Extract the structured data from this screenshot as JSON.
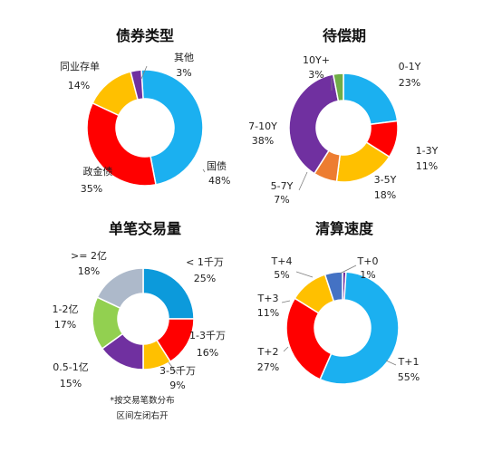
{
  "chart_data": [
    {
      "type": "pie",
      "title": "债券类型",
      "slices": [
        {
          "label": "国债",
          "value": 48,
          "pct_label": "48%",
          "color": "#1BB0F0"
        },
        {
          "label": "政金债",
          "value": 35,
          "pct_label": "35%",
          "color": "#FF0000"
        },
        {
          "label": "同业存单",
          "value": 14,
          "pct_label": "14%",
          "color": "#FFC000"
        },
        {
          "label": "其他",
          "value": 3,
          "pct_label": "3%",
          "color": "#7030A0"
        }
      ]
    },
    {
      "type": "pie",
      "title": "待偿期",
      "slices": [
        {
          "label": "0-1Y",
          "value": 23,
          "pct_label": "23%",
          "color": "#1BB0F0"
        },
        {
          "label": "1-3Y",
          "value": 11,
          "pct_label": "11%",
          "color": "#FF0000"
        },
        {
          "label": "3-5Y",
          "value": 18,
          "pct_label": "18%",
          "color": "#FFC000"
        },
        {
          "label": "5-7Y",
          "value": 7,
          "pct_label": "7%",
          "color": "#ED7D31"
        },
        {
          "label": "7-10Y",
          "value": 38,
          "pct_label": "38%",
          "color": "#7030A0"
        },
        {
          "label": "10Y+",
          "value": 3,
          "pct_label": "3%",
          "color": "#70AD47"
        }
      ]
    },
    {
      "type": "pie",
      "title": "单笔交易量",
      "slices": [
        {
          "label": "< 1千万",
          "value": 25,
          "pct_label": "25%",
          "color": "#0C9ADB"
        },
        {
          "label": "1-3千万",
          "value": 16,
          "pct_label": "16%",
          "color": "#FF0000"
        },
        {
          "label": "3-5千万",
          "value": 9,
          "pct_label": "9%",
          "color": "#FFC000"
        },
        {
          "label": "0.5-1亿",
          "value": 15,
          "pct_label": "15%",
          "color": "#7030A0"
        },
        {
          "label": "1-2亿",
          "value": 17,
          "pct_label": "17%",
          "color": "#92D050"
        },
        {
          "label": ">= 2亿",
          "value": 18,
          "pct_label": "18%",
          "color": "#ADB9CA"
        }
      ],
      "note": [
        "*按交易笔数分布",
        "区间左闭右开"
      ]
    },
    {
      "type": "pie",
      "title": "清算速度",
      "slices": [
        {
          "label": "T+0",
          "value": 1,
          "pct_label": "1%",
          "color": "#7030A0"
        },
        {
          "label": "T+1",
          "value": 55,
          "pct_label": "55%",
          "color": "#1BB0F0"
        },
        {
          "label": "T+2",
          "value": 27,
          "pct_label": "27%",
          "color": "#FF0000"
        },
        {
          "label": "T+3",
          "value": 11,
          "pct_label": "11%",
          "color": "#FFC000"
        },
        {
          "label": "T+4",
          "value": 5,
          "pct_label": "5%",
          "color": "#4472C4"
        }
      ]
    }
  ]
}
